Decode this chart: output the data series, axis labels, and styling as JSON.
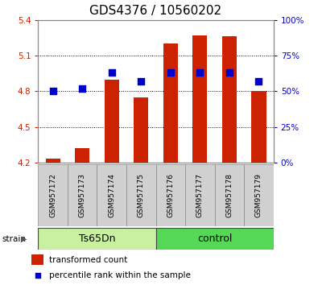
{
  "title": "GDS4376 / 10560202",
  "samples": [
    "GSM957172",
    "GSM957173",
    "GSM957174",
    "GSM957175",
    "GSM957176",
    "GSM957177",
    "GSM957178",
    "GSM957179"
  ],
  "red_values": [
    4.23,
    4.32,
    4.9,
    4.75,
    5.2,
    5.27,
    5.26,
    4.8
  ],
  "blue_percentiles": [
    50,
    52,
    63,
    57,
    63,
    63,
    63,
    57
  ],
  "ylim_left": [
    4.2,
    5.4
  ],
  "ylim_right": [
    0,
    100
  ],
  "yticks_left": [
    4.2,
    4.5,
    4.8,
    5.1,
    5.4
  ],
  "yticks_right": [
    0,
    25,
    50,
    75,
    100
  ],
  "groups": [
    {
      "label": "Ts65Dn",
      "indices": [
        0,
        1,
        2,
        3
      ],
      "color": "#c8f0a0"
    },
    {
      "label": "control",
      "indices": [
        4,
        5,
        6,
        7
      ],
      "color": "#55d855"
    }
  ],
  "bar_color": "#cc2200",
  "dot_color": "#0000cc",
  "bar_width": 0.5,
  "dot_size": 30,
  "strain_label": "strain",
  "legend_items": [
    {
      "label": "transformed count",
      "color": "#cc2200"
    },
    {
      "label": "percentile rank within the sample",
      "color": "#0000cc"
    }
  ],
  "title_fontsize": 11,
  "tick_fontsize": 7.5,
  "sample_fontsize": 6.5,
  "group_fontsize": 9,
  "legend_fontsize": 7.5,
  "grid_color": "#000000",
  "background_color": "#ffffff",
  "tick_color_left": "#cc2200",
  "tick_color_right": "#0000cc",
  "spine_color": "#888888",
  "sample_box_color": "#d0d0d0",
  "sample_box_edge": "#888888"
}
